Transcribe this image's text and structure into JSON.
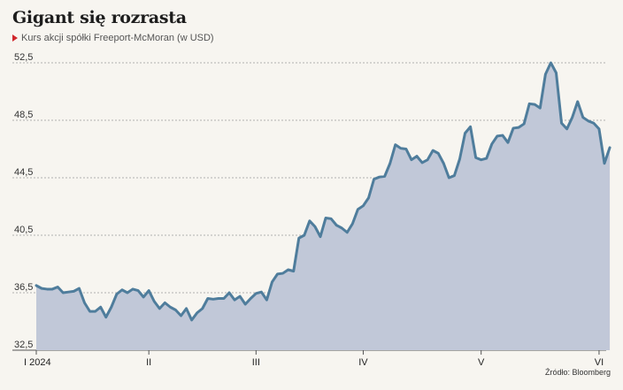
{
  "colors": {
    "background": "#f7f5f0",
    "line": "#4f7d9c",
    "area": "#c1c8d8",
    "grid": "#9a9a9a",
    "marker": "#d0262b"
  },
  "chart_data": {
    "type": "area",
    "title": "Gigant się rozrasta",
    "subtitle": "Kurs akcji spółki Freeport-McMoran (w USD)",
    "source": "Źródło: Bloomberg",
    "ylim": [
      32.5,
      52.5
    ],
    "yticks": [
      32.5,
      36.5,
      40.5,
      44.5,
      48.5,
      52.5
    ],
    "ytick_labels": [
      "32,5",
      "36,5",
      "40,5",
      "44,5",
      "48,5",
      "52,5"
    ],
    "xlim": [
      0,
      106
    ],
    "xticks": [
      {
        "label": "I 2024",
        "x": 0
      },
      {
        "label": "II",
        "x": 21
      },
      {
        "label": "III",
        "x": 41
      },
      {
        "label": "IV",
        "x": 61
      },
      {
        "label": "V",
        "x": 83
      },
      {
        "label": "VI",
        "x": 105
      }
    ],
    "grid": "horizontal-dashed",
    "legend": "none",
    "series": [
      {
        "values": [
          37.0,
          36.8,
          36.75,
          36.75,
          36.9,
          36.5,
          36.55,
          36.6,
          36.8,
          35.8,
          35.2,
          35.2,
          35.5,
          34.8,
          35.5,
          36.4,
          36.7,
          36.5,
          36.75,
          36.65,
          36.2,
          36.65,
          35.9,
          35.4,
          35.8,
          35.5,
          35.3,
          34.9,
          35.4,
          34.6,
          35.1,
          35.4,
          36.1,
          36.05,
          36.1,
          36.1,
          36.5,
          36.0,
          36.25,
          35.7,
          36.1,
          36.45,
          36.55,
          36.0,
          37.25,
          37.8,
          37.85,
          38.1,
          38.0,
          40.3,
          40.5,
          41.5,
          41.1,
          40.4,
          41.7,
          41.65,
          41.2,
          41.0,
          40.7,
          41.3,
          42.3,
          42.55,
          43.1,
          44.4,
          44.55,
          44.6,
          45.5,
          46.8,
          46.55,
          46.5,
          45.75,
          46.0,
          45.55,
          45.75,
          46.4,
          46.2,
          45.5,
          44.5,
          44.65,
          45.8,
          47.6,
          48.05,
          45.9,
          45.75,
          45.85,
          46.85,
          47.4,
          47.45,
          46.95,
          47.95,
          48.0,
          48.25,
          49.65,
          49.6,
          49.35,
          51.7,
          52.5,
          51.8,
          48.3,
          47.9,
          48.7,
          49.8,
          48.7,
          48.45,
          48.3,
          47.9,
          45.5,
          46.6
        ]
      }
    ]
  }
}
